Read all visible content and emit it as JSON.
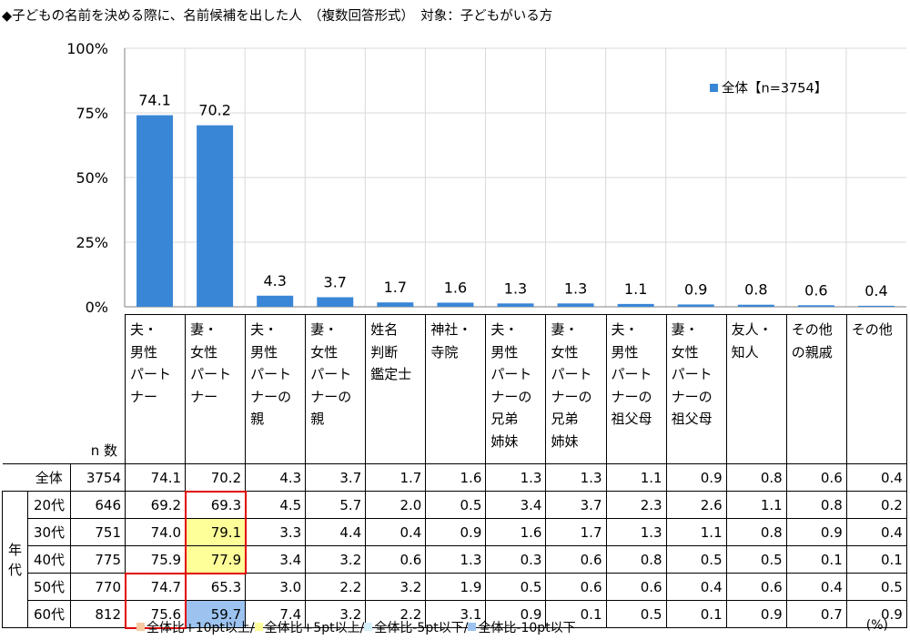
{
  "title": "◆子どもの名前を決める際に、名前候補を出した人　（複数回答形式）　対象：子どもがいる方",
  "chart_data": {
    "type": "bar",
    "categories": [
      "夫・男性パートナー",
      "妻・女性パートナー",
      "夫・男性パートナーの親",
      "妻・女性パートナーの親",
      "姓名判断鑑定士",
      "神社・寺院",
      "夫・男性パートナーの兄弟姉妹",
      "妻・女性パートナーの兄弟姉妹",
      "夫・男性パートナーの祖父母",
      "妻・女性パートナーの祖父母",
      "友人・知人",
      "その他の親戚",
      "その他"
    ],
    "series": [
      {
        "name": "全体【n=3754】",
        "values": [
          74.1,
          70.2,
          4.3,
          3.7,
          1.7,
          1.6,
          1.3,
          1.3,
          1.1,
          0.9,
          0.8,
          0.6,
          0.4
        ]
      }
    ],
    "value_labels": [
      "74.1",
      "70.2",
      "4.3",
      "3.7",
      "1.7",
      "1.6",
      "1.3",
      "1.3",
      "1.1",
      "0.9",
      "0.8",
      "0.6",
      "0.4"
    ],
    "ylim": [
      0,
      100
    ],
    "yticks": [
      "0%",
      "25%",
      "50%",
      "75%",
      "100%"
    ],
    "grid": true,
    "legend_position": "top-right",
    "bar_color": "#3a86d6"
  },
  "table": {
    "headers": [
      [
        "夫・",
        "男性",
        "パート",
        "ナー"
      ],
      [
        "妻・",
        "女性",
        "パート",
        "ナー"
      ],
      [
        "夫・",
        "男性",
        "パート",
        "ナーの",
        "親"
      ],
      [
        "妻・",
        "女性",
        "パート",
        "ナーの",
        "親"
      ],
      [
        "姓名",
        "判断",
        "鑑定士"
      ],
      [
        "神社・",
        "寺院"
      ],
      [
        "夫・",
        "男性",
        "パート",
        "ナーの",
        "兄弟",
        "姉妹"
      ],
      [
        "妻・",
        "女性",
        "パート",
        "ナーの",
        "兄弟",
        "姉妹"
      ],
      [
        "夫・",
        "男性",
        "パート",
        "ナーの",
        "祖父母"
      ],
      [
        "妻・",
        "女性",
        "パート",
        "ナーの",
        "祖父母"
      ],
      [
        "友人・",
        "知人"
      ],
      [
        "その他",
        "の親戚"
      ],
      [
        "その他"
      ]
    ],
    "n_label": "n 数",
    "group_label": [
      "年",
      "代"
    ],
    "rows": [
      {
        "label": "全体",
        "n": "3754",
        "values": [
          "74.1",
          "70.2",
          "4.3",
          "3.7",
          "1.7",
          "1.6",
          "1.3",
          "1.3",
          "1.1",
          "0.9",
          "0.8",
          "0.6",
          "0.4"
        ],
        "hl": [
          "",
          "",
          "",
          "",
          "",
          "",
          "",
          "",
          "",
          "",
          "",
          "",
          ""
        ]
      },
      {
        "label": "20代",
        "n": "646",
        "values": [
          "69.2",
          "69.3",
          "4.5",
          "5.7",
          "2.0",
          "0.5",
          "3.4",
          "3.7",
          "2.3",
          "2.6",
          "1.1",
          "0.8",
          "0.2"
        ],
        "hl": [
          "",
          "",
          "",
          "",
          "",
          "",
          "",
          "",
          "",
          "",
          "",
          "",
          ""
        ]
      },
      {
        "label": "30代",
        "n": "751",
        "values": [
          "74.0",
          "79.1",
          "3.3",
          "4.4",
          "0.4",
          "0.9",
          "1.6",
          "1.7",
          "1.3",
          "1.1",
          "0.8",
          "0.9",
          "0.4"
        ],
        "hl": [
          "",
          "yellow",
          "",
          "",
          "",
          "",
          "",
          "",
          "",
          "",
          "",
          "",
          ""
        ]
      },
      {
        "label": "40代",
        "n": "775",
        "values": [
          "75.9",
          "77.9",
          "3.4",
          "3.2",
          "0.6",
          "1.3",
          "0.3",
          "0.6",
          "0.8",
          "0.5",
          "0.5",
          "0.1",
          "0.1"
        ],
        "hl": [
          "",
          "yellow",
          "",
          "",
          "",
          "",
          "",
          "",
          "",
          "",
          "",
          "",
          ""
        ]
      },
      {
        "label": "50代",
        "n": "770",
        "values": [
          "74.7",
          "65.3",
          "3.0",
          "2.2",
          "3.2",
          "1.9",
          "0.5",
          "0.6",
          "0.6",
          "0.4",
          "0.6",
          "0.4",
          "0.5"
        ],
        "hl": [
          "",
          "",
          "",
          "",
          "",
          "",
          "",
          "",
          "",
          "",
          "",
          "",
          ""
        ]
      },
      {
        "label": "60代",
        "n": "812",
        "values": [
          "75.6",
          "59.7",
          "7.4",
          "3.2",
          "2.2",
          "3.1",
          "0.9",
          "0.1",
          "0.5",
          "0.1",
          "0.9",
          "0.7",
          "0.9"
        ],
        "hl": [
          "",
          "blue",
          "",
          "",
          "",
          "",
          "",
          "",
          "",
          "",
          "",
          "",
          ""
        ]
      }
    ]
  },
  "legend_bottom": [
    {
      "text": "全体比+10pt以上/",
      "color": "#f7c9a0"
    },
    {
      "text": "全体比+5pt以上/",
      "color": "#ffff99"
    },
    {
      "text": "全体比-5pt以下/",
      "color": "#d6f0fb"
    },
    {
      "text": "全体比-10pt以下",
      "color": "#9cc3f0"
    }
  ],
  "unit_label": "(%)"
}
